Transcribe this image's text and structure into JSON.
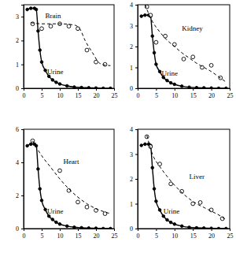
{
  "chart_data": [
    {
      "type": "line",
      "xlim": [
        0,
        25
      ],
      "xticks": [
        0,
        5,
        10,
        15,
        20,
        25
      ],
      "ylim": [
        0,
        3.5
      ],
      "yticks": [
        0,
        1,
        2,
        3
      ],
      "series": [
        {
          "color": "#000000",
          "marker": "filled-circle",
          "line_style": "solid",
          "x": [
            1,
            2,
            3,
            3.5,
            4,
            4.5,
            5,
            6,
            7,
            8,
            9,
            10,
            12,
            14,
            16,
            18,
            20,
            22,
            24
          ],
          "values": [
            3.3,
            3.35,
            3.35,
            3.3,
            2.4,
            1.6,
            1.1,
            0.75,
            0.5,
            0.35,
            0.25,
            0.18,
            0.1,
            0.05,
            0.03,
            0.02,
            0.01,
            0,
            0
          ]
        },
        {
          "color": "#000000",
          "marker": "open-circle",
          "line_style": "none",
          "x": [
            2.5,
            5,
            7.5,
            10,
            12.5,
            15,
            17.5,
            20,
            22.5
          ],
          "values": [
            2.7,
            2.5,
            2.6,
            2.7,
            2.6,
            2.5,
            1.6,
            1.1,
            1.0
          ]
        },
        {
          "color": "#000000",
          "marker": "none",
          "line_style": "dashed",
          "x": [
            2,
            5,
            10,
            14,
            15.5,
            17,
            19,
            21,
            22.5,
            24
          ],
          "values": [
            2.75,
            2.7,
            2.7,
            2.65,
            2.5,
            2.0,
            1.5,
            1.05,
            0.97,
            0.95
          ]
        }
      ],
      "annotations": [
        {
          "text": "Brain",
          "x": 6,
          "y": 2.95
        },
        {
          "text": "Urine",
          "x": 6.5,
          "y": 0.6
        }
      ]
    },
    {
      "type": "line",
      "xlim": [
        0,
        25
      ],
      "xticks": [
        0,
        5,
        10,
        15,
        20,
        25
      ],
      "ylim": [
        0,
        4
      ],
      "yticks": [
        0,
        1,
        2,
        3,
        4
      ],
      "series": [
        {
          "color": "#000000",
          "marker": "filled-circle",
          "line_style": "solid",
          "x": [
            1,
            2,
            3,
            3.5,
            4,
            4.5,
            5,
            6,
            7,
            8,
            9,
            10,
            12,
            14,
            16,
            18,
            20,
            22,
            24
          ],
          "values": [
            3.45,
            3.5,
            3.5,
            3.45,
            2.5,
            1.7,
            1.15,
            0.8,
            0.52,
            0.37,
            0.26,
            0.19,
            0.1,
            0.05,
            0.03,
            0.02,
            0.01,
            0,
            0
          ]
        },
        {
          "color": "#000000",
          "marker": "open-circle",
          "line_style": "none",
          "x": [
            2.5,
            3.5,
            5,
            7.5,
            10,
            12.5,
            15,
            17.5,
            20,
            22.5
          ],
          "values": [
            3.9,
            3.5,
            2.2,
            2.5,
            2.1,
            1.4,
            1.5,
            1.0,
            1.1,
            0.5
          ]
        },
        {
          "color": "#000000",
          "marker": "none",
          "line_style": "dashed",
          "x": [
            2,
            4,
            6,
            8,
            10,
            12,
            14,
            16,
            18,
            20,
            22,
            24
          ],
          "values": [
            4.0,
            3.2,
            2.7,
            2.3,
            2.0,
            1.7,
            1.45,
            1.2,
            1.0,
            0.8,
            0.55,
            0.3
          ]
        }
      ],
      "annotations": [
        {
          "text": "Kidney",
          "x": 12,
          "y": 2.75
        },
        {
          "text": "Urine",
          "x": 6.5,
          "y": 0.6
        }
      ]
    },
    {
      "type": "line",
      "xlim": [
        0,
        25
      ],
      "xticks": [
        0,
        5,
        10,
        15,
        20,
        25
      ],
      "ylim": [
        0,
        6
      ],
      "yticks": [
        0,
        2,
        4,
        6
      ],
      "series": [
        {
          "color": "#000000",
          "marker": "filled-circle",
          "line_style": "solid",
          "x": [
            1,
            2,
            3,
            3.5,
            4,
            4.5,
            5,
            6,
            7,
            8,
            9,
            10,
            12,
            14,
            16,
            18,
            20,
            22,
            24
          ],
          "values": [
            5.0,
            5.1,
            5.1,
            5.0,
            3.6,
            2.4,
            1.7,
            1.15,
            0.75,
            0.55,
            0.38,
            0.27,
            0.15,
            0.08,
            0.05,
            0.03,
            0.02,
            0,
            0
          ]
        },
        {
          "color": "#000000",
          "marker": "open-circle",
          "line_style": "none",
          "x": [
            2.5,
            10,
            12.5,
            15,
            17.5,
            20,
            22.5
          ],
          "values": [
            5.3,
            3.5,
            2.3,
            1.6,
            1.3,
            1.1,
            0.9
          ]
        },
        {
          "color": "#000000",
          "marker": "none",
          "line_style": "dashed",
          "x": [
            2.5,
            5,
            7.5,
            10,
            12.5,
            15,
            17.5,
            20,
            22.5,
            24
          ],
          "values": [
            5.3,
            4.4,
            3.7,
            3.0,
            2.4,
            1.9,
            1.5,
            1.2,
            1.0,
            0.9
          ]
        }
      ],
      "annotations": [
        {
          "text": "Heart",
          "x": 11,
          "y": 3.9
        },
        {
          "text": "Urine",
          "x": 6.5,
          "y": 0.9
        }
      ]
    },
    {
      "type": "line",
      "xlim": [
        0,
        25
      ],
      "xticks": [
        0,
        5,
        10,
        15,
        20,
        25
      ],
      "ylim": [
        0,
        4
      ],
      "yticks": [
        0,
        1,
        2,
        3,
        4
      ],
      "series": [
        {
          "color": "#000000",
          "marker": "filled-circle",
          "line_style": "solid",
          "x": [
            1,
            2,
            3,
            3.5,
            4,
            4.5,
            5,
            6,
            7,
            8,
            9,
            10,
            12,
            14,
            16,
            18,
            20,
            22,
            24
          ],
          "values": [
            3.35,
            3.4,
            3.4,
            3.35,
            2.45,
            1.6,
            1.1,
            0.75,
            0.5,
            0.35,
            0.25,
            0.18,
            0.1,
            0.05,
            0.03,
            0.02,
            0.01,
            0,
            0
          ]
        },
        {
          "color": "#000000",
          "marker": "open-circle",
          "line_style": "none",
          "x": [
            2.5,
            3.5,
            6,
            9,
            12,
            15,
            17,
            20,
            23
          ],
          "values": [
            3.7,
            3.3,
            2.6,
            1.8,
            1.5,
            1.0,
            1.05,
            0.75,
            0.4
          ]
        },
        {
          "color": "#000000",
          "marker": "none",
          "line_style": "dashed",
          "x": [
            2.5,
            4,
            6,
            8,
            10,
            12,
            14,
            16,
            18,
            20,
            22,
            24
          ],
          "values": [
            3.75,
            3.0,
            2.5,
            2.1,
            1.75,
            1.45,
            1.2,
            1.0,
            0.85,
            0.7,
            0.55,
            0.35
          ]
        }
      ],
      "annotations": [
        {
          "text": "Liver",
          "x": 14,
          "y": 2.0
        },
        {
          "text": "Urine",
          "x": 7,
          "y": 0.6
        }
      ]
    }
  ]
}
